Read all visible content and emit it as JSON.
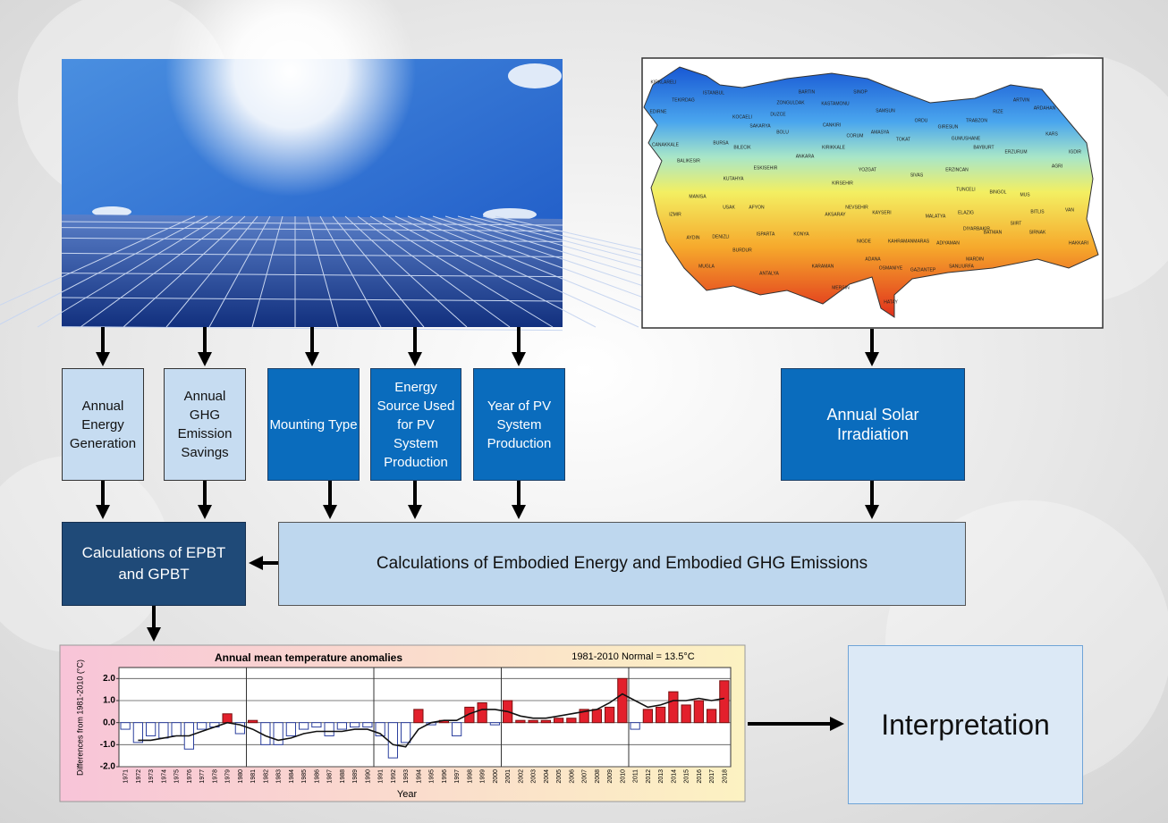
{
  "diagram": {
    "inputs": [
      "Annual Energy Generation",
      "Annual GHG Emission Savings",
      "Mounting Type",
      "Energy Source Used for PV System Production",
      "Year of PV System Production",
      "Annual Solar Irradiation"
    ],
    "calc_payback": "Calculations of EPBT and GPBT",
    "calc_embodied": "Calculations of Embodied Energy and Embodied GHG Emissions",
    "interpretation": "Interpretation"
  },
  "map": {
    "labels": [
      "KIRKLARELI",
      "EDIRNE",
      "TEKIRDAG",
      "ISTANBUL",
      "KOCAELI",
      "SAKARYA",
      "DUZCE",
      "ZONGULDAK",
      "BARTIN",
      "KASTAMONU",
      "SINOP",
      "SAMSUN",
      "ORDU",
      "GIRESUN",
      "TRABZON",
      "RIZE",
      "ARTVIN",
      "ARDAHAN",
      "KARS",
      "IGDIR",
      "AGRI",
      "ERZURUM",
      "BAYBURT",
      "GUMUSHANE",
      "ERZINCAN",
      "SIVAS",
      "TOKAT",
      "AMASYA",
      "CORUM",
      "YOZGAT",
      "CANKIRI",
      "BOLU",
      "ANKARA",
      "KIRIKKALE",
      "KIRSEHIR",
      "ESKISEHIR",
      "BILECIK",
      "BURSA",
      "BALIKESIR",
      "CANAKKALE",
      "MANISA",
      "IZMIR",
      "KUTAHYA",
      "USAK",
      "AFYON",
      "AYDIN",
      "DENIZLI",
      "MUGLA",
      "BURDUR",
      "ISPARTA",
      "ANTALYA",
      "KONYA",
      "AKSARAY",
      "NEVSEHIR",
      "KAYSERI",
      "NIGDE",
      "KARAMAN",
      "MERSIN",
      "ADANA",
      "OSMANIYE",
      "HATAY",
      "KAHRAMANMARAS",
      "GAZIANTEP",
      "ADIYAMAN",
      "MALATYA",
      "ELAZIG",
      "TUNCELI",
      "BINGOL",
      "MUS",
      "BITLIS",
      "VAN",
      "HAKKARI",
      "SIRNAK",
      "SIIRT",
      "BATMAN",
      "MARDIN",
      "DIYARBAKIR",
      "SANLIURFA"
    ]
  },
  "chart_data": {
    "type": "bar",
    "title": "Annual mean temperature anomalies",
    "subtitle": "1981-2010 Normal = 13.5°C",
    "y_label": "Differences from 1981-2010 (°C)",
    "x_label": "Year",
    "categories": [
      "1971",
      "1972",
      "1973",
      "1974",
      "1975",
      "1976",
      "1977",
      "1978",
      "1979",
      "1980",
      "1981",
      "1982",
      "1983",
      "1984",
      "1985",
      "1986",
      "1987",
      "1988",
      "1989",
      "1990",
      "1991",
      "1992",
      "1993",
      "1994",
      "1995",
      "1996",
      "1997",
      "1998",
      "1999",
      "2000",
      "2001",
      "2002",
      "2003",
      "2004",
      "2005",
      "2006",
      "2007",
      "2008",
      "2009",
      "2010",
      "2011",
      "2012",
      "2013",
      "2014",
      "2015",
      "2016",
      "2017",
      "2018"
    ],
    "series": [
      {
        "values": [
          -0.3,
          -0.9,
          -0.6,
          -0.7,
          -0.6,
          -1.2,
          -0.3,
          -0.2,
          0.4,
          -0.5,
          0.1,
          -1.0,
          -1.0,
          -0.6,
          -0.3,
          -0.2,
          -0.6,
          -0.3,
          -0.2,
          -0.2,
          -0.6,
          -1.6,
          -0.9,
          0.6,
          -0.1,
          0.1,
          -0.6,
          0.7,
          0.9,
          -0.1,
          1.0,
          0.1,
          0.1,
          0.1,
          0.2,
          0.2,
          0.6,
          0.6,
          0.7,
          2.0,
          -0.3,
          0.6,
          0.7,
          1.4,
          0.8,
          1.0,
          0.6,
          1.9
        ],
        "positive_color": "#e3202c",
        "negative_color": "#2b3f9e"
      },
      {
        "type": "line",
        "color": "#111111",
        "values": [
          null,
          -0.8,
          -0.8,
          -0.7,
          -0.6,
          -0.6,
          -0.4,
          -0.2,
          0.0,
          -0.1,
          -0.3,
          -0.6,
          -0.8,
          -0.7,
          -0.5,
          -0.4,
          -0.4,
          -0.4,
          -0.3,
          -0.3,
          -0.5,
          -1.0,
          -1.1,
          -0.3,
          0.0,
          0.1,
          0.1,
          0.4,
          0.6,
          0.6,
          0.5,
          0.3,
          0.2,
          0.2,
          0.3,
          0.4,
          0.5,
          0.6,
          0.9,
          1.3,
          1.0,
          0.7,
          0.8,
          1.0,
          1.0,
          1.1,
          1.0,
          1.1
        ]
      }
    ],
    "ylim": [
      -2.0,
      2.5
    ],
    "yticks": [
      {
        "value": 2,
        "label": "2.0"
      },
      {
        "value": 1,
        "label": "1.0"
      },
      {
        "value": 0,
        "label": "0.0"
      },
      {
        "value": -1,
        "label": "-1.0"
      },
      {
        "value": -2,
        "label": "-2.0"
      }
    ],
    "grid": true
  }
}
